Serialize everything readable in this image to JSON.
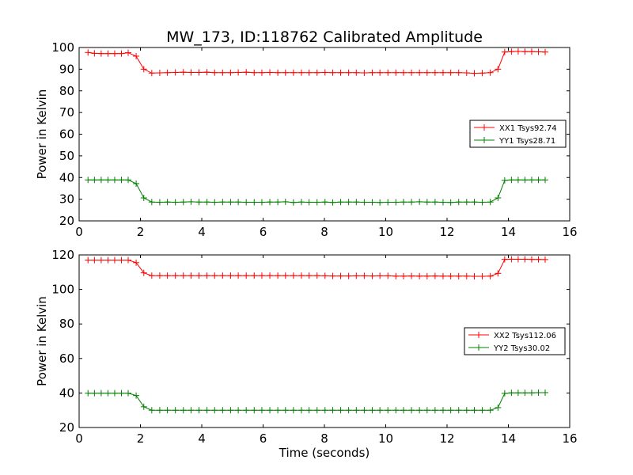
{
  "figure": {
    "title": "MW_173, ID:118762 Calibrated Amplitude",
    "xlabel": "Time (seconds)"
  },
  "colors": {
    "red": "#ff0000",
    "green": "#008000"
  },
  "chart_data": [
    {
      "type": "line",
      "title": "MW_173, ID:118762 Calibrated Amplitude",
      "xlabel": "",
      "ylabel": "Power in Kelvin",
      "xlim": [
        0,
        16
      ],
      "ylim": [
        20,
        100
      ],
      "xticks": [
        0,
        2,
        4,
        6,
        8,
        10,
        12,
        14,
        16
      ],
      "yticks": [
        20,
        30,
        40,
        50,
        60,
        70,
        80,
        90,
        100
      ],
      "grid": false,
      "legend": "center-right",
      "series": [
        {
          "name": "XX1 Tsys92.74",
          "color": "#ff0000",
          "x": [
            0.29,
            0.5,
            0.72,
            0.94,
            1.16,
            1.38,
            1.6,
            1.86,
            2.11,
            2.37,
            2.63,
            2.88,
            3.14,
            3.4,
            3.65,
            3.91,
            4.17,
            4.42,
            4.68,
            4.94,
            5.19,
            5.45,
            5.71,
            5.96,
            6.22,
            6.48,
            6.73,
            6.99,
            7.25,
            7.5,
            7.76,
            8.02,
            8.27,
            8.53,
            8.79,
            9.04,
            9.3,
            9.56,
            9.81,
            10.07,
            10.33,
            10.58,
            10.84,
            11.1,
            11.35,
            11.61,
            11.87,
            12.12,
            12.38,
            12.64,
            12.89,
            13.15,
            13.41,
            13.66,
            13.88,
            14.1,
            14.32,
            14.54,
            14.76,
            14.98,
            15.2
          ],
          "y": [
            97.7,
            97.3,
            97.2,
            97.2,
            97.2,
            97.2,
            97.6,
            96.0,
            90.0,
            88.2,
            88.3,
            88.4,
            88.5,
            88.6,
            88.5,
            88.5,
            88.6,
            88.4,
            88.4,
            88.4,
            88.5,
            88.6,
            88.4,
            88.4,
            88.5,
            88.4,
            88.4,
            88.4,
            88.4,
            88.4,
            88.4,
            88.5,
            88.4,
            88.4,
            88.4,
            88.4,
            88.3,
            88.4,
            88.4,
            88.4,
            88.4,
            88.4,
            88.4,
            88.4,
            88.4,
            88.4,
            88.4,
            88.4,
            88.4,
            88.3,
            88.1,
            88.2,
            88.4,
            90.0,
            97.9,
            98.1,
            98.2,
            98.1,
            98.1,
            98.0,
            97.9
          ]
        },
        {
          "name": "YY1 Tsys28.71",
          "color": "#008000",
          "x": [
            0.29,
            0.5,
            0.72,
            0.94,
            1.16,
            1.38,
            1.6,
            1.86,
            2.11,
            2.37,
            2.63,
            2.88,
            3.14,
            3.4,
            3.65,
            3.91,
            4.17,
            4.42,
            4.68,
            4.94,
            5.19,
            5.45,
            5.71,
            5.96,
            6.22,
            6.48,
            6.73,
            6.99,
            7.25,
            7.5,
            7.76,
            8.02,
            8.27,
            8.53,
            8.79,
            9.04,
            9.3,
            9.56,
            9.81,
            10.07,
            10.33,
            10.58,
            10.84,
            11.1,
            11.35,
            11.61,
            11.87,
            12.12,
            12.38,
            12.64,
            12.89,
            13.15,
            13.41,
            13.66,
            13.88,
            14.1,
            14.32,
            14.54,
            14.76,
            14.98,
            15.2
          ],
          "y": [
            38.9,
            38.9,
            38.9,
            38.9,
            38.9,
            38.9,
            38.9,
            37.2,
            30.6,
            28.7,
            28.6,
            28.7,
            28.6,
            28.7,
            28.8,
            28.7,
            28.7,
            28.6,
            28.7,
            28.7,
            28.7,
            28.6,
            28.6,
            28.6,
            28.7,
            28.7,
            28.8,
            28.5,
            28.7,
            28.6,
            28.6,
            28.7,
            28.5,
            28.7,
            28.7,
            28.7,
            28.6,
            28.6,
            28.5,
            28.6,
            28.6,
            28.7,
            28.7,
            28.8,
            28.7,
            28.7,
            28.6,
            28.5,
            28.7,
            28.7,
            28.7,
            28.6,
            28.7,
            30.6,
            38.7,
            38.9,
            38.9,
            38.9,
            38.9,
            38.9,
            38.9
          ]
        }
      ]
    },
    {
      "type": "line",
      "title": "",
      "xlabel": "Time (seconds)",
      "ylabel": "Power in Kelvin",
      "xlim": [
        0,
        16
      ],
      "ylim": [
        20,
        120
      ],
      "xticks": [
        0,
        2,
        4,
        6,
        8,
        10,
        12,
        14,
        16
      ],
      "yticks": [
        20,
        40,
        60,
        80,
        100,
        120
      ],
      "grid": false,
      "legend": "center-right",
      "series": [
        {
          "name": "XX2 Tsys112.06",
          "color": "#ff0000",
          "x": [
            0.29,
            0.5,
            0.72,
            0.94,
            1.16,
            1.38,
            1.6,
            1.86,
            2.11,
            2.37,
            2.63,
            2.88,
            3.14,
            3.4,
            3.65,
            3.91,
            4.17,
            4.42,
            4.68,
            4.94,
            5.19,
            5.45,
            5.71,
            5.96,
            6.22,
            6.48,
            6.73,
            6.99,
            7.25,
            7.5,
            7.76,
            8.02,
            8.27,
            8.53,
            8.79,
            9.04,
            9.3,
            9.56,
            9.81,
            10.07,
            10.33,
            10.58,
            10.84,
            11.1,
            11.35,
            11.61,
            11.87,
            12.12,
            12.38,
            12.64,
            12.89,
            13.15,
            13.41,
            13.66,
            13.88,
            14.1,
            14.32,
            14.54,
            14.76,
            14.98,
            15.2
          ],
          "y": [
            117.0,
            117.0,
            117.0,
            117.0,
            117.0,
            117.0,
            117.0,
            115.5,
            109.6,
            108.0,
            108.0,
            108.0,
            108.0,
            108.0,
            108.0,
            108.0,
            108.0,
            108.0,
            108.0,
            108.0,
            108.0,
            108.0,
            108.0,
            108.0,
            108.0,
            108.0,
            108.0,
            108.0,
            108.0,
            108.0,
            108.0,
            107.9,
            107.8,
            107.8,
            107.8,
            107.9,
            107.9,
            107.8,
            107.9,
            107.9,
            107.7,
            107.7,
            107.8,
            107.7,
            107.7,
            107.8,
            107.7,
            107.7,
            107.7,
            107.7,
            107.6,
            107.6,
            107.7,
            109.3,
            117.4,
            117.5,
            117.5,
            117.5,
            117.4,
            117.4,
            117.3
          ]
        },
        {
          "name": "YY2 Tsys30.02",
          "color": "#008000",
          "x": [
            0.29,
            0.5,
            0.72,
            0.94,
            1.16,
            1.38,
            1.6,
            1.86,
            2.11,
            2.37,
            2.63,
            2.88,
            3.14,
            3.4,
            3.65,
            3.91,
            4.17,
            4.42,
            4.68,
            4.94,
            5.19,
            5.45,
            5.71,
            5.96,
            6.22,
            6.48,
            6.73,
            6.99,
            7.25,
            7.5,
            7.76,
            8.02,
            8.27,
            8.53,
            8.79,
            9.04,
            9.3,
            9.56,
            9.81,
            10.07,
            10.33,
            10.58,
            10.84,
            11.1,
            11.35,
            11.61,
            11.87,
            12.12,
            12.38,
            12.64,
            12.89,
            13.15,
            13.41,
            13.66,
            13.88,
            14.1,
            14.32,
            14.54,
            14.76,
            14.98,
            15.2
          ],
          "y": [
            39.9,
            39.9,
            39.9,
            39.9,
            39.9,
            39.9,
            39.9,
            38.5,
            32.0,
            30.0,
            30.0,
            30.0,
            30.0,
            30.0,
            30.0,
            30.0,
            30.0,
            30.0,
            30.0,
            30.0,
            30.0,
            30.0,
            30.0,
            30.0,
            30.0,
            30.0,
            30.0,
            30.0,
            30.0,
            30.0,
            30.0,
            30.0,
            30.0,
            30.0,
            30.0,
            30.0,
            30.0,
            30.0,
            30.0,
            30.0,
            30.0,
            30.0,
            30.0,
            30.0,
            30.0,
            30.0,
            30.0,
            30.0,
            30.0,
            30.0,
            30.0,
            30.0,
            30.0,
            31.5,
            39.8,
            40.1,
            40.1,
            40.1,
            40.1,
            40.2,
            40.2
          ]
        }
      ]
    }
  ]
}
